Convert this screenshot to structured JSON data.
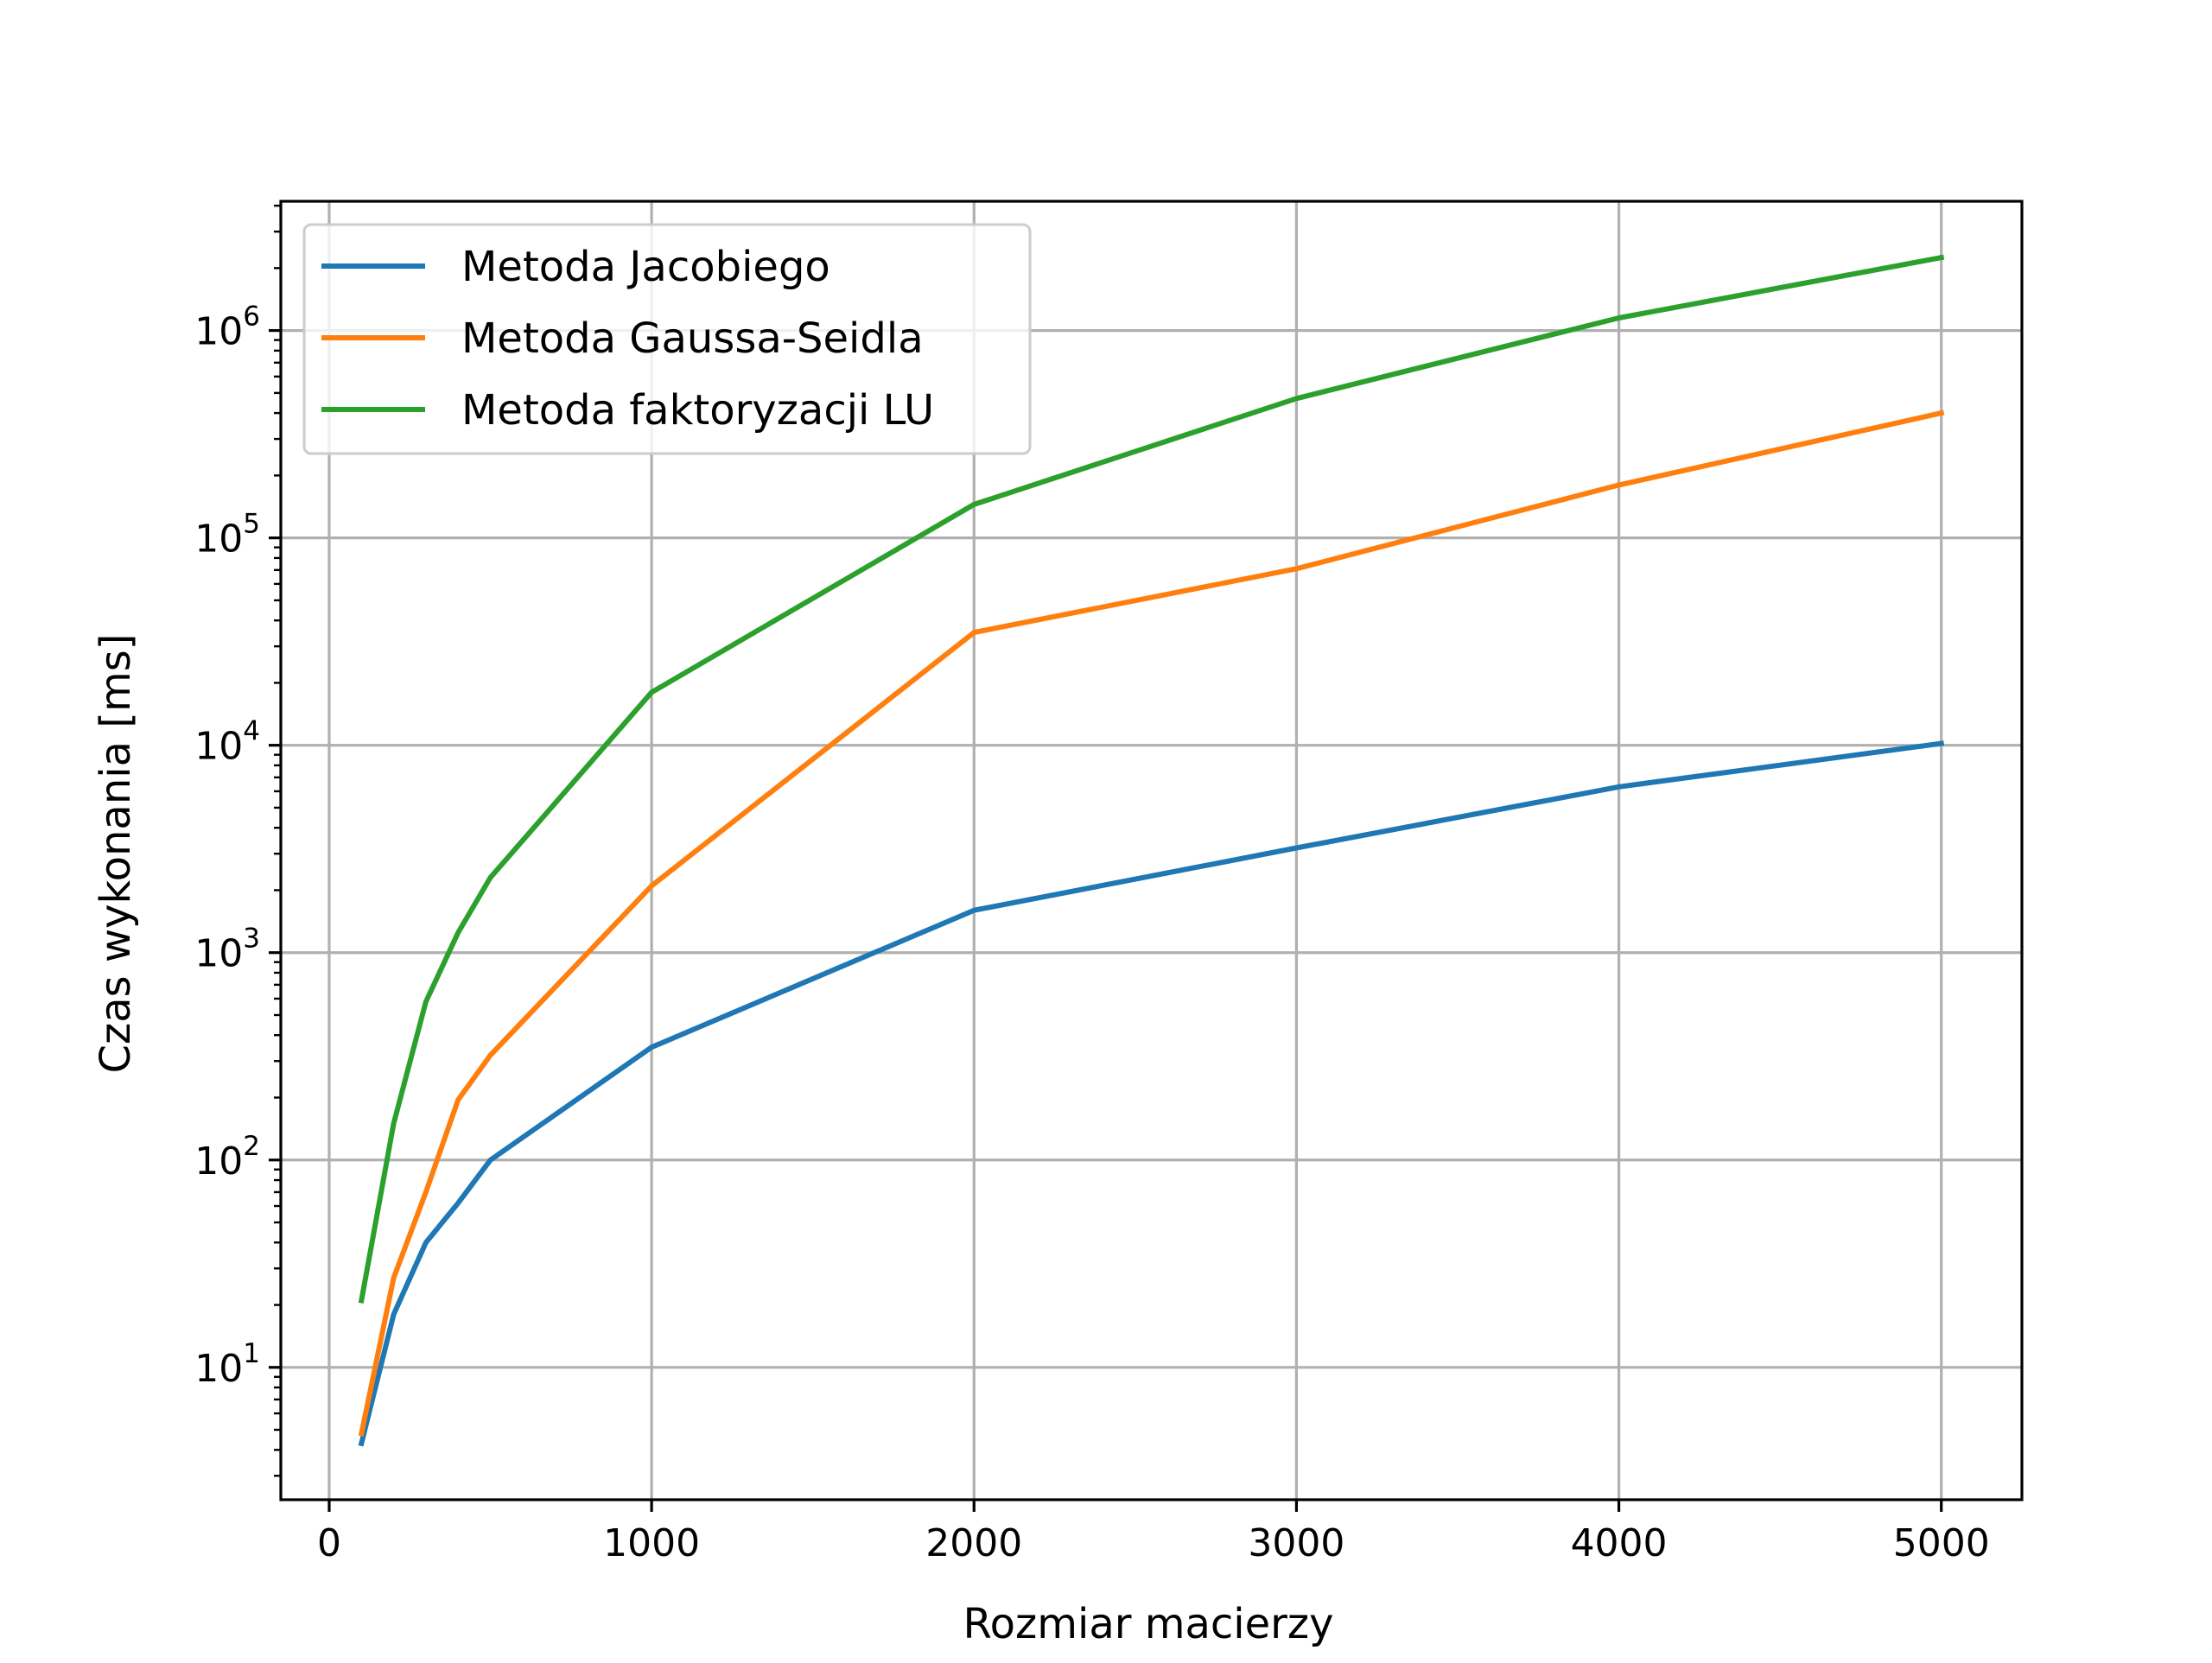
{
  "chart_data": {
    "type": "line",
    "title": "",
    "xlabel": "Rozmiar macierzy",
    "ylabel": "Czas wykonania [ms]",
    "xlim": [
      -150,
      5250
    ],
    "ylim": [
      2.3,
      4200000
    ],
    "yscale": "log",
    "grid": true,
    "legend_position": "top-left",
    "x_ticks": [
      {
        "value": 0,
        "label": "0"
      },
      {
        "value": 1000,
        "label": "1000"
      },
      {
        "value": 2000,
        "label": "2000"
      },
      {
        "value": 3000,
        "label": "3000"
      },
      {
        "value": 4000,
        "label": "4000"
      },
      {
        "value": 5000,
        "label": "5000"
      }
    ],
    "y_ticks": [
      {
        "value": 10,
        "base": "10",
        "exp": "1"
      },
      {
        "value": 100,
        "base": "10",
        "exp": "2"
      },
      {
        "value": 1000,
        "base": "10",
        "exp": "3"
      },
      {
        "value": 10000,
        "base": "10",
        "exp": "4"
      },
      {
        "value": 100000,
        "base": "10",
        "exp": "5"
      },
      {
        "value": 1000000,
        "base": "10",
        "exp": "6"
      }
    ],
    "series": [
      {
        "name": "Metoda Jacobiego",
        "color": "#1f77b4",
        "x": [
          100,
          200,
          300,
          400,
          500,
          1000,
          2000,
          3000,
          4000,
          5000
        ],
        "y": [
          4.3,
          18,
          40,
          62,
          100,
          350,
          1600,
          3200,
          6300,
          10200
        ]
      },
      {
        "name": "Metoda Gaussa-Seidla",
        "color": "#ff7f0e",
        "x": [
          100,
          200,
          300,
          400,
          500,
          1000,
          2000,
          3000,
          4000,
          5000
        ],
        "y": [
          4.8,
          27,
          70,
          195,
          320,
          2100,
          35000,
          71000,
          180000,
          400000
        ]
      },
      {
        "name": "Metoda faktoryzacji LU",
        "color": "#2ca02c",
        "x": [
          100,
          200,
          300,
          400,
          500,
          1000,
          2000,
          3000,
          4000,
          5000
        ],
        "y": [
          21,
          150,
          580,
          1250,
          2300,
          18000,
          145000,
          470000,
          1150000,
          2250000
        ]
      }
    ]
  }
}
